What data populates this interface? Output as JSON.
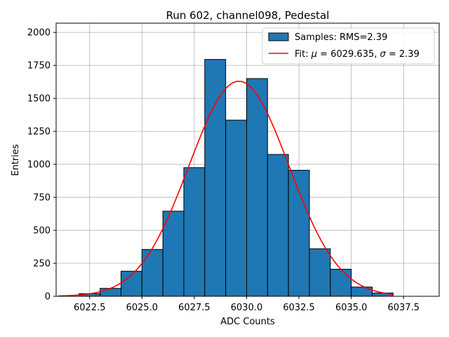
{
  "chart_data": {
    "type": "bar",
    "title": "Run 602, channel098, Pedestal",
    "xlabel": "ADC Counts",
    "ylabel": "Entries",
    "xlim": [
      6020.9,
      6039.2
    ],
    "ylim": [
      0,
      2070
    ],
    "xticks": [
      6022.5,
      6025.0,
      6027.5,
      6030.0,
      6032.5,
      6035.0,
      6037.5
    ],
    "xtick_labels": [
      "6022.5",
      "6025.0",
      "6027.5",
      "6030.0",
      "6032.5",
      "6035.0",
      "6037.5"
    ],
    "yticks": [
      0,
      250,
      500,
      750,
      1000,
      1250,
      1500,
      1750,
      2000
    ],
    "ytick_labels": [
      "0",
      "250",
      "500",
      "750",
      "1000",
      "1250",
      "1500",
      "1750",
      "2000"
    ],
    "grid": true,
    "legend_position": "top-right",
    "histogram": {
      "name": "Samples: RMS=2.39",
      "color": "#1f77b4",
      "edge_color": "#000000",
      "bin_edges": [
        6022,
        6023,
        6024,
        6025,
        6026,
        6027,
        6028,
        6029,
        6030,
        6031,
        6032,
        6033,
        6034,
        6035,
        6036,
        6037
      ],
      "counts": [
        20,
        60,
        190,
        355,
        645,
        975,
        1795,
        1335,
        1650,
        1075,
        955,
        360,
        205,
        70,
        25
      ]
    },
    "fit": {
      "name": "Fit: μ = 6029.635, σ = 2.39",
      "name_parts": {
        "prefix": "Fit: ",
        "mu_symbol": "μ",
        "mu_text": " = 6029.635, ",
        "sigma_symbol": "σ",
        "sigma_text": " = 2.39"
      },
      "type": "gaussian",
      "mu": 6029.635,
      "sigma": 2.39,
      "amplitude": 1630,
      "x_range": [
        6021,
        6037
      ],
      "color": "#ff0000"
    }
  }
}
